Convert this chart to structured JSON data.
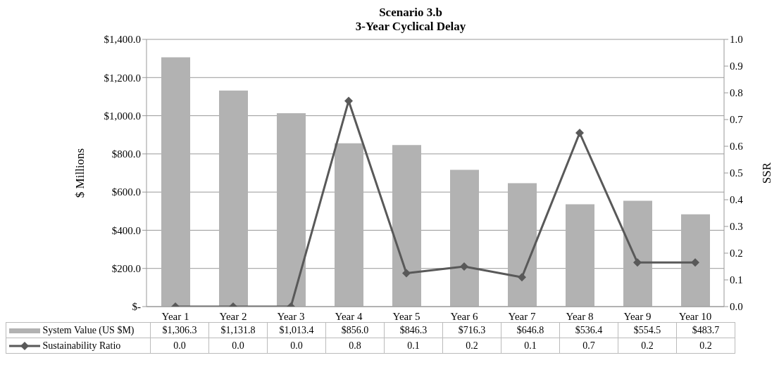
{
  "chart_data": {
    "type": "bar",
    "title": "Scenario 3.b",
    "subtitle": "3-Year Cyclical Delay",
    "ylabel": "$ Millions",
    "y2label": "SSR",
    "categories": [
      "Year 1",
      "Year 2",
      "Year 3",
      "Year 4",
      "Year 5",
      "Year 6",
      "Year 7",
      "Year 8",
      "Year 9",
      "Year 10"
    ],
    "series": [
      {
        "name": "System Value (US $M)",
        "color": "#b2b2b2",
        "values": [
          1306.3,
          1131.8,
          1013.4,
          856.0,
          846.3,
          716.3,
          646.8,
          536.4,
          554.5,
          483.7
        ],
        "value_labels": [
          "$1,306.3",
          "$1,131.8",
          "$1,013.4",
          "$856.0",
          "$846.3",
          "$716.3",
          "$646.8",
          "$536.4",
          "$554.5",
          "$483.7"
        ]
      },
      {
        "name": "Sustainability Ratio",
        "type": "line",
        "axis": "y2",
        "color": "#595959",
        "values": [
          0,
          0,
          0,
          0.77,
          0.125,
          0.15,
          0.11,
          0.65,
          0.165,
          0.165
        ],
        "value_labels": [
          "0.0",
          "0.0",
          "0.0",
          "0.8",
          "0.1",
          "0.2",
          "0.1",
          "0.7",
          "0.2",
          "0.2"
        ]
      }
    ],
    "ylim": [
      0,
      1400
    ],
    "yticks": [
      {
        "value": 0,
        "label": "$-"
      },
      {
        "value": 200,
        "label": "$200.0"
      },
      {
        "value": 400,
        "label": "$400.0"
      },
      {
        "value": 600,
        "label": "$600.0"
      },
      {
        "value": 800,
        "label": "$800.0"
      },
      {
        "value": 1000,
        "label": "$1,000.0"
      },
      {
        "value": 1200,
        "label": "$1,200.0"
      },
      {
        "value": 1400,
        "label": "$1,400.0"
      }
    ],
    "y2lim": [
      0,
      1
    ],
    "y2ticks": [
      {
        "value": 0,
        "label": "0.0"
      },
      {
        "value": 0.1,
        "label": "0.1"
      },
      {
        "value": 0.2,
        "label": "0.2"
      },
      {
        "value": 0.3,
        "label": "0.3"
      },
      {
        "value": 0.4,
        "label": "0.4"
      },
      {
        "value": 0.5,
        "label": "0.5"
      },
      {
        "value": 0.6,
        "label": "0.6"
      },
      {
        "value": 0.7,
        "label": "0.7"
      },
      {
        "value": 0.8,
        "label": "0.8"
      },
      {
        "value": 0.9,
        "label": "0.9"
      },
      {
        "value": 1,
        "label": "1.0"
      }
    ],
    "grid": "y",
    "legend": "bottom",
    "marker": "diamond",
    "line_style": "solid"
  }
}
